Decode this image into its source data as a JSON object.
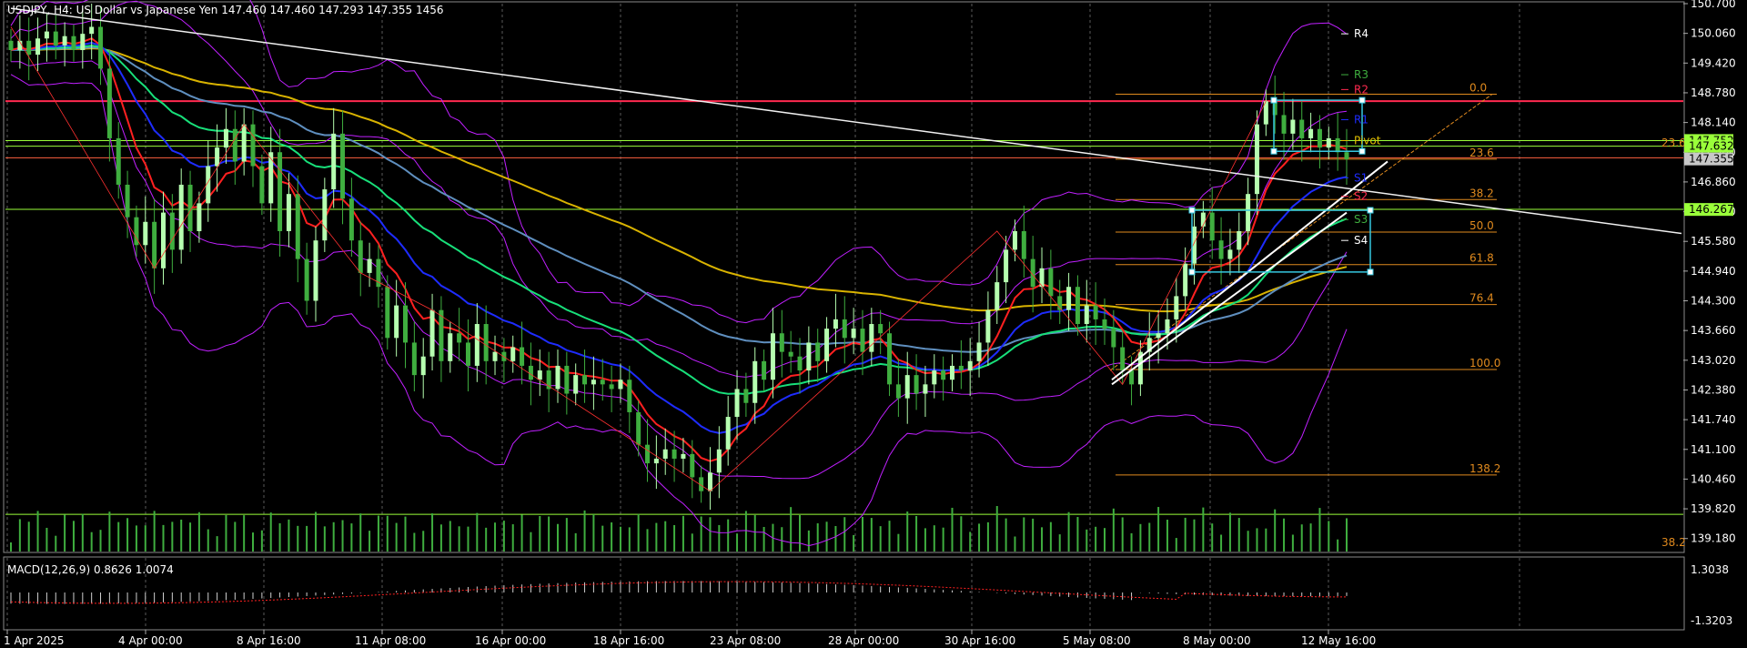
{
  "header": {
    "symbol_line": "USDJPY, H4:  US Dollar vs Japanese Yen  147.460 147.460 147.293 147.355  1456",
    "macd_line": "MACD(12,26,9) 0.8626 1.0074"
  },
  "colors": {
    "background": "#000000",
    "grid": "#5a5a5a",
    "bull": "#b6ffb0",
    "bear": "#3fae3f",
    "ema_red": "#ff2020",
    "ema_blue": "#1e2cff",
    "ema_green": "#18e07a",
    "ema_steel": "#5f8fbf",
    "ema_gold": "#d9b300",
    "bollinger": "#c020ff",
    "fib": "#e08a1e",
    "resistance": "#ff2a4f",
    "support": "#9aff3a",
    "trendline": "#f0f0f0",
    "box": "#36c8e0"
  },
  "chart_data": {
    "type": "candlestick",
    "price_axis": {
      "min": 138.9,
      "max": 150.7,
      "ticks": [
        "150.700",
        "150.060",
        "149.420",
        "148.780",
        "148.140",
        "147.500",
        "146.860",
        "146.220",
        "145.580",
        "144.940",
        "144.300",
        "143.660",
        "143.020",
        "142.380",
        "141.740",
        "141.100",
        "140.460",
        "139.820",
        "139.180"
      ]
    },
    "time_axis": {
      "labels": [
        "1 Apr 2025",
        "4 Apr 00:00",
        "8 Apr 16:00",
        "11 Apr 08:00",
        "16 Apr 00:00",
        "18 Apr 16:00",
        "23 Apr 08:00",
        "28 Apr 00:00",
        "30 Apr 16:00",
        "5 May 08:00",
        "8 May 00:00",
        "12 May 16:00"
      ],
      "bar_count": 150
    },
    "price_labels": [
      {
        "text": "147.752",
        "value": 147.752,
        "color": "#9aff3a"
      },
      {
        "text": "147.632",
        "value": 147.632,
        "color": "#9aff3a"
      },
      {
        "text": "147.355",
        "value": 147.355,
        "color": "#c8c8c8"
      },
      {
        "text": "146.267",
        "value": 146.267,
        "color": "#9aff3a"
      }
    ],
    "horizontal_lines": [
      {
        "name": "resistance",
        "value": 148.6,
        "color": "#ff2a4f"
      },
      {
        "name": "support-upper",
        "value": 146.27,
        "color": "#9aff3a"
      },
      {
        "name": "support-lower",
        "value": 139.7,
        "color": "#9aff3a"
      },
      {
        "name": "level-a",
        "value": 147.75,
        "color": "#9aff3a"
      },
      {
        "name": "level-b",
        "value": 147.63,
        "color": "#9aff3a"
      },
      {
        "name": "level-c",
        "value": 147.38,
        "color": "#ff6040"
      }
    ],
    "fibonacci": {
      "levels": [
        {
          "label": "0.0",
          "value": 148.75
        },
        {
          "label": "23.6",
          "value": 147.35
        },
        {
          "label": "38.2",
          "value": 146.48
        },
        {
          "label": "50.0",
          "value": 145.78
        },
        {
          "label": "61.8",
          "value": 145.08
        },
        {
          "label": "76.4",
          "value": 144.22
        },
        {
          "label": "100.0",
          "value": 142.82
        },
        {
          "label": "138.2",
          "value": 140.55
        }
      ],
      "extra_label_top": "23.6",
      "extra_label_bottom": "38.2"
    },
    "pivots": [
      {
        "label": "R4",
        "value": 150.05,
        "color": "#ffffff"
      },
      {
        "label": "R3",
        "value": 149.17,
        "color": "#3fae3f"
      },
      {
        "label": "R2",
        "value": 148.85,
        "color": "#ff2a4f"
      },
      {
        "label": "R1",
        "value": 148.2,
        "color": "#1e2cff"
      },
      {
        "label": "Pivot",
        "value": 147.75,
        "color": "#e0c000"
      },
      {
        "label": "S1",
        "value": 146.95,
        "color": "#1e2cff"
      },
      {
        "label": "S2",
        "value": 146.55,
        "color": "#ff2a4f"
      },
      {
        "label": "S3",
        "value": 146.05,
        "color": "#3fae3f"
      },
      {
        "label": "S4",
        "value": 145.6,
        "color": "#ffffff"
      }
    ],
    "trendline": {
      "from": [
        0,
        150.6
      ],
      "to": [
        150,
        145.75
      ]
    },
    "candles_close": [
      149.7,
      149.9,
      149.6,
      149.95,
      150.1,
      149.8,
      150.0,
      149.7,
      150.05,
      150.2,
      149.3,
      147.8,
      146.8,
      146.1,
      145.5,
      146.0,
      145.0,
      146.2,
      145.4,
      146.8,
      145.8,
      146.4,
      147.2,
      147.6,
      148.0,
      147.3,
      148.1,
      147.2,
      146.4,
      147.5,
      145.8,
      146.6,
      145.2,
      144.3,
      145.6,
      146.7,
      147.9,
      146.5,
      145.6,
      144.9,
      145.2,
      144.6,
      143.5,
      144.2,
      143.4,
      142.7,
      143.1,
      144.1,
      143.0,
      143.6,
      143.4,
      142.9,
      143.8,
      143.0,
      143.2,
      143.0,
      143.3,
      142.9,
      142.6,
      142.8,
      142.4,
      142.9,
      142.3,
      142.7,
      142.5,
      142.6,
      142.5,
      142.4,
      142.6,
      141.9,
      141.2,
      140.8,
      140.9,
      141.1,
      140.9,
      141.0,
      140.5,
      140.2,
      140.6,
      141.1,
      141.8,
      142.4,
      142.1,
      143.0,
      142.6,
      143.6,
      143.2,
      143.1,
      142.8,
      143.4,
      143.0,
      143.7,
      143.9,
      143.5,
      143.7,
      143.2,
      143.8,
      143.6,
      142.5,
      142.2,
      142.7,
      142.3,
      142.5,
      142.8,
      142.6,
      142.9,
      142.8,
      143.0,
      143.4,
      144.1,
      144.7,
      145.4,
      145.8,
      145.2,
      144.6,
      145.0,
      144.4,
      144.1,
      144.6,
      143.8,
      144.2,
      143.9,
      143.7,
      143.3,
      142.8,
      142.5,
      143.2,
      143.5,
      143.6,
      143.9,
      144.4,
      145.1,
      145.9,
      146.2,
      145.6,
      145.2,
      145.4,
      145.8,
      146.6,
      148.1,
      148.6,
      148.3,
      147.9,
      148.2,
      147.8,
      148.0,
      147.6,
      147.8,
      147.5,
      147.35
    ]
  }
}
